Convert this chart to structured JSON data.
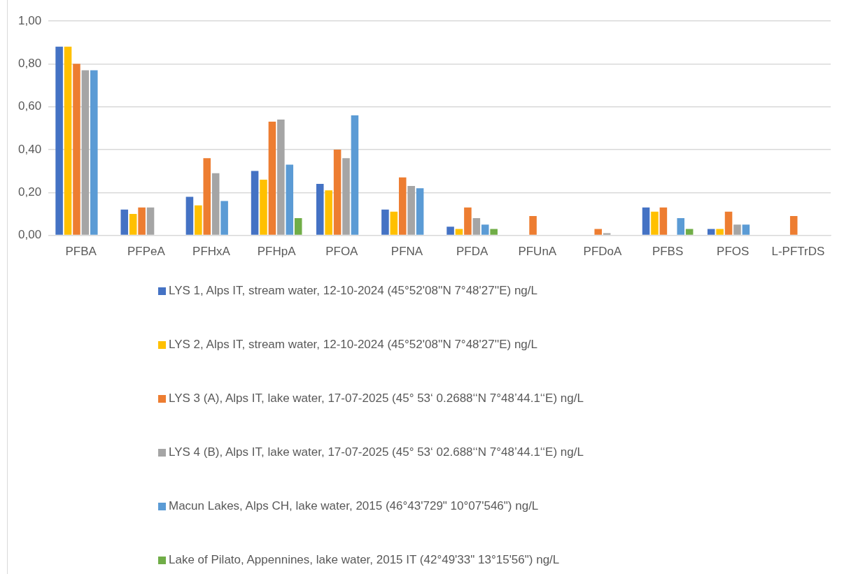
{
  "chart_data": {
    "type": "bar",
    "categories": [
      "PFBA",
      "PFPeA",
      "PFHxA",
      "PFHpA",
      "PFOA",
      "PFNA",
      "PFDA",
      "PFUnA",
      "PFDoA",
      "PFBS",
      "PFOS",
      "L-PFTrDS"
    ],
    "series": [
      {
        "name": "LYS 1, Alps IT, stream water, 12-10-2024  (45°52'08''N    7°48'27''E) ng/L",
        "color": "#4472c4",
        "values": [
          0.88,
          0.12,
          0.18,
          0.3,
          0.24,
          0.12,
          0.04,
          null,
          null,
          0.13,
          0.03,
          null
        ]
      },
      {
        "name": "LYS 2, Alps IT, stream water, 12-10-2024  (45°52'08''N    7°48'27''E) ng/L",
        "color": "#ffc000",
        "values": [
          0.88,
          0.1,
          0.14,
          0.26,
          0.21,
          0.11,
          0.03,
          null,
          null,
          0.11,
          0.03,
          null
        ]
      },
      {
        "name": "LYS 3 (A), Alps IT, lake water, 17-07-2025 (45° 53‘ 0.2688‘‘N 7°48’44.1‘‘E) ng/L",
        "color": "#ed7d31",
        "values": [
          0.8,
          0.13,
          0.36,
          0.53,
          0.4,
          0.27,
          0.13,
          0.09,
          0.03,
          0.13,
          0.11,
          0.09
        ]
      },
      {
        "name": "LYS 4 (B), Alps IT, lake water, 17-07-2025 (45° 53‘ 02.688‘‘N 7°48’44.1‘‘E) ng/L",
        "color": "#a5a5a5",
        "values": [
          0.77,
          0.13,
          0.29,
          0.54,
          0.36,
          0.23,
          0.08,
          null,
          0.01,
          null,
          0.05,
          null
        ]
      },
      {
        "name": "Macun Lakes, Alps CH, lake water, 2015 (46°43'729\" 10°07'546\") ng/L",
        "color": "#5b9bd5",
        "values": [
          0.77,
          null,
          0.16,
          0.33,
          0.56,
          0.22,
          0.05,
          null,
          null,
          0.08,
          0.05,
          null
        ]
      },
      {
        "name": "Lake of Pilato, Appennines, lake water, 2015 IT (42°49'33\" 13°15'56\") ng/L",
        "color": "#70ad47",
        "values": [
          null,
          null,
          null,
          0.08,
          null,
          null,
          0.03,
          null,
          null,
          0.03,
          null,
          null
        ]
      }
    ],
    "ylim": [
      0,
      1
    ],
    "yticks": [
      {
        "value": 0,
        "label": "0,00"
      },
      {
        "value": 0.2,
        "label": "0,20"
      },
      {
        "value": 0.4,
        "label": "0,40"
      },
      {
        "value": 0.6,
        "label": "0,60"
      },
      {
        "value": 0.8,
        "label": "0,80"
      },
      {
        "value": 1,
        "label": "1,00"
      }
    ],
    "grid": "y",
    "legend": "bottom"
  }
}
